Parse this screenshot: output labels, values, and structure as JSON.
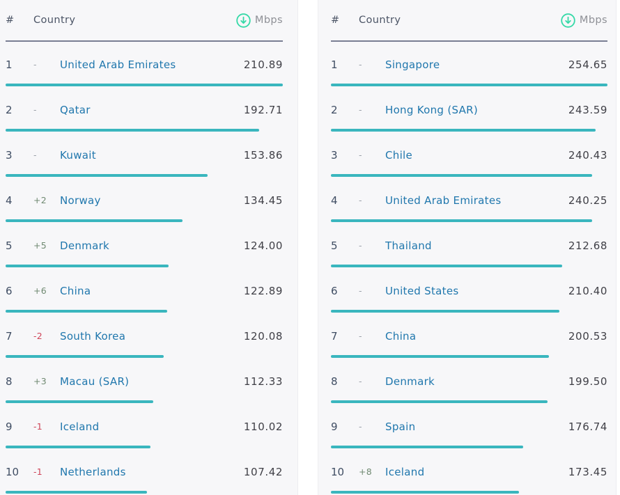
{
  "colors": {
    "bar": "#3ab6be",
    "sort_icon": "#35d9a7",
    "country_link": "#2077ad",
    "change_positive": "#708a72",
    "change_negative": "#cf4458",
    "change_neutral": "#9aa0a8"
  },
  "tables": [
    {
      "id": "left",
      "headers": {
        "rank": "#",
        "country": "Country",
        "unit": "Mbps"
      },
      "rows": [
        {
          "rank": "1",
          "change": "-",
          "country": "United Arab Emirates",
          "value": "210.89"
        },
        {
          "rank": "2",
          "change": "-",
          "country": "Qatar",
          "value": "192.71"
        },
        {
          "rank": "3",
          "change": "-",
          "country": "Kuwait",
          "value": "153.86"
        },
        {
          "rank": "4",
          "change": "+2",
          "country": "Norway",
          "value": "134.45"
        },
        {
          "rank": "5",
          "change": "+5",
          "country": "Denmark",
          "value": "124.00"
        },
        {
          "rank": "6",
          "change": "+6",
          "country": "China",
          "value": "122.89"
        },
        {
          "rank": "7",
          "change": "-2",
          "country": "South Korea",
          "value": "120.08"
        },
        {
          "rank": "8",
          "change": "+3",
          "country": "Macau (SAR)",
          "value": "112.33"
        },
        {
          "rank": "9",
          "change": "-1",
          "country": "Iceland",
          "value": "110.02"
        },
        {
          "rank": "10",
          "change": "-1",
          "country": "Netherlands",
          "value": "107.42"
        }
      ]
    },
    {
      "id": "right",
      "headers": {
        "rank": "#",
        "country": "Country",
        "unit": "Mbps"
      },
      "rows": [
        {
          "rank": "1",
          "change": "-",
          "country": "Singapore",
          "value": "254.65"
        },
        {
          "rank": "2",
          "change": "-",
          "country": "Hong Kong (SAR)",
          "value": "243.59"
        },
        {
          "rank": "3",
          "change": "-",
          "country": "Chile",
          "value": "240.43"
        },
        {
          "rank": "4",
          "change": "-",
          "country": "United Arab Emirates",
          "value": "240.25"
        },
        {
          "rank": "5",
          "change": "-",
          "country": "Thailand",
          "value": "212.68"
        },
        {
          "rank": "6",
          "change": "-",
          "country": "United States",
          "value": "210.40"
        },
        {
          "rank": "7",
          "change": "-",
          "country": "China",
          "value": "200.53"
        },
        {
          "rank": "8",
          "change": "-",
          "country": "Denmark",
          "value": "199.50"
        },
        {
          "rank": "9",
          "change": "-",
          "country": "Spain",
          "value": "176.74"
        },
        {
          "rank": "10",
          "change": "+8",
          "country": "Iceland",
          "value": "173.45"
        }
      ]
    }
  ]
}
